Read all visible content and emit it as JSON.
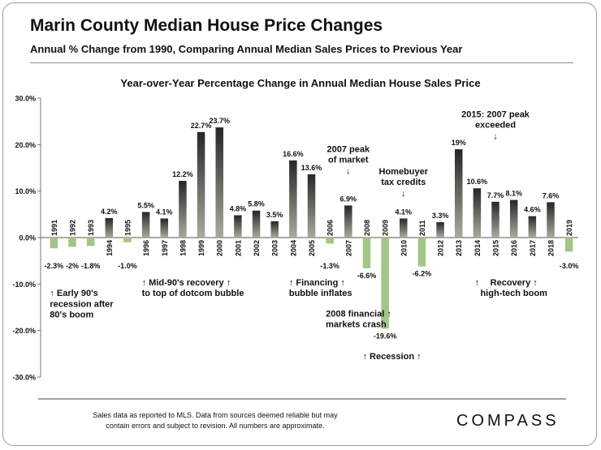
{
  "header": {
    "title": "Marin County Median House Price Changes",
    "subtitle": "Annual % Change from 1990, Comparing Annual Median Sales Prices to Previous Year"
  },
  "footer": {
    "note_line1": "Sales data as reported to MLS. Data from sources deemed reliable but may",
    "note_line2": "contain errors and subject to revision. All numbers are approximate.",
    "brand": "COMPASS"
  },
  "colors": {
    "positive_top": "#262626",
    "positive_bottom": "#a7ab9e",
    "negative": "#a3c585",
    "text": "#111111"
  },
  "chart_data": {
    "type": "bar",
    "title": "Year-over-Year Percentage Change in Annual Median House Sales Price",
    "xlabel": "",
    "ylabel": "",
    "ylim": [
      -30,
      30
    ],
    "yticks": [
      30,
      20,
      10,
      0,
      -10,
      -20,
      -30
    ],
    "ytick_labels": [
      "30.0%",
      "20.0%",
      "10.0%",
      "0.0%",
      "-10.0%",
      "-20.0%",
      "-30.0%"
    ],
    "grid": false,
    "categories": [
      "1991",
      "1992",
      "1993",
      "1994",
      "1995",
      "1996",
      "1997",
      "1998",
      "1999",
      "2000",
      "2001",
      "2002",
      "2003",
      "2004",
      "2005",
      "2006",
      "2007",
      "2008",
      "2009",
      "2010",
      "2011",
      "2012",
      "2013",
      "2014",
      "2015",
      "2016",
      "2017",
      "2018",
      "2019"
    ],
    "values": [
      -2.3,
      -2,
      -1.8,
      4.2,
      -1.0,
      5.5,
      4.1,
      12.2,
      22.7,
      23.7,
      4.8,
      5.8,
      3.5,
      16.6,
      13.6,
      -1.3,
      6.9,
      -6.6,
      -19.6,
      4.1,
      -6.2,
      3.3,
      19,
      10.6,
      7.7,
      8.1,
      4.6,
      7.6,
      -3.0
    ],
    "data_labels": [
      "-2.3%",
      "-2%",
      "-1.8%",
      "4.2%",
      "-1.0%",
      "5.5%",
      "4.1%",
      "12.2%",
      "22.7%",
      "23.7%",
      "4.8%",
      "5.8%",
      "3.5%",
      "16.6%",
      "13.6%",
      "-1.3%",
      "6.9%",
      "-6.6%",
      "-19.6%",
      "4.1%",
      "-6.2%",
      "3.3%",
      "19%",
      "10.6%",
      "7.7%",
      "8.1%",
      "4.6%",
      "7.6%",
      "-3.0%"
    ],
    "annotations": [
      {
        "text": "↑ Early 90's",
        "x": "1991",
        "y": -12.6,
        "anchor": "start"
      },
      {
        "text": "recession after",
        "x": "1991",
        "y": -14.9,
        "anchor": "start"
      },
      {
        "text": "80's boom",
        "x": "1991",
        "y": -17.2,
        "anchor": "start"
      },
      {
        "text": "↑ Mid-90's recovery ↑",
        "x": "1996",
        "y": -10.3,
        "anchor": "start"
      },
      {
        "text": "to top of dotcom bubble",
        "x": "1996",
        "y": -12.6,
        "anchor": "start"
      },
      {
        "text": "↑ Financing ↑",
        "x": "2004",
        "y": -10.3,
        "anchor": "start"
      },
      {
        "text": "bubble inflates",
        "x": "2004",
        "y": -12.6,
        "anchor": "start"
      },
      {
        "text": "2008 financial ↑",
        "x": "2006",
        "y": -17.0,
        "anchor": "start"
      },
      {
        "text": "markets crash",
        "x": "2006",
        "y": -19.3,
        "anchor": "start"
      },
      {
        "text": "↑ Recession ↑",
        "x": "2008",
        "y": -26.2,
        "anchor": "start"
      },
      {
        "text": "2007 peak",
        "x": "2007",
        "y": 18.4,
        "anchor": "middle"
      },
      {
        "text": "of market",
        "x": "2007",
        "y": 16.1,
        "anchor": "middle"
      },
      {
        "text": "↓",
        "x": "2007",
        "y": 13.7,
        "anchor": "middle"
      },
      {
        "text": "Homebuyer",
        "x": "2010",
        "y": 13.6,
        "anchor": "middle"
      },
      {
        "text": "tax credits",
        "x": "2010",
        "y": 11.3,
        "anchor": "middle"
      },
      {
        "text": "↓",
        "x": "2010",
        "y": 8.9,
        "anchor": "middle"
      },
      {
        "text": "2015: 2007 peak",
        "x": "2015",
        "y": 25.9,
        "anchor": "middle"
      },
      {
        "text": "exceeded",
        "x": "2015",
        "y": 23.6,
        "anchor": "middle"
      },
      {
        "text": "↓",
        "x": "2015",
        "y": 21.2,
        "anchor": "middle"
      },
      {
        "text": "↑",
        "x": "2014",
        "y": -10.3,
        "anchor": "middle"
      },
      {
        "text": "Recovery ↑",
        "x": "2016",
        "y": -10.3,
        "anchor": "middle"
      },
      {
        "text": "high-tech boom",
        "x": "2016",
        "y": -12.6,
        "anchor": "middle"
      }
    ]
  }
}
